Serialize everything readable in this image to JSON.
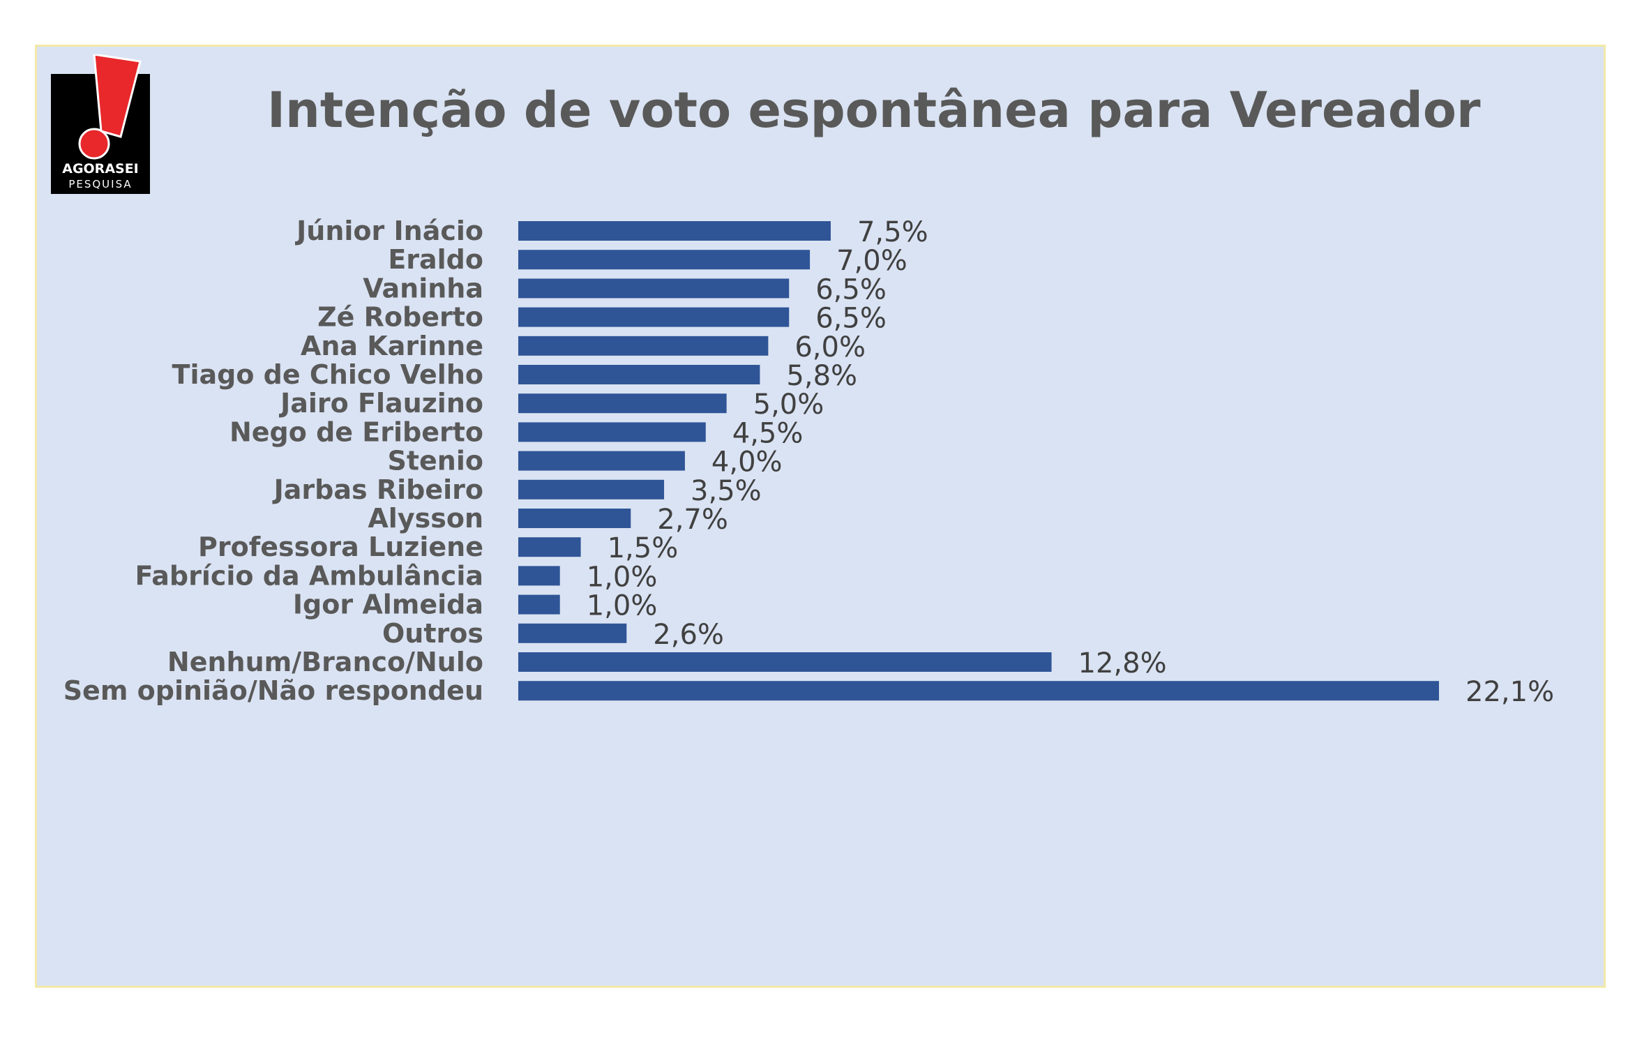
{
  "logo": {
    "text_top": "AGORASEI",
    "text_bottom": "PESQUISA",
    "colors": {
      "background": "#000000",
      "mark": "#e8282b",
      "text": "#ffffff"
    }
  },
  "colors": {
    "panel_background": "#dae3f3",
    "panel_border": "#f2e9a8",
    "bar": "#2f5597",
    "title": "#595959",
    "category_text": "#595959",
    "value_text": "#404040"
  },
  "chart_data": {
    "type": "bar",
    "orientation": "horizontal",
    "title": "Intenção de voto espontânea para Vereador",
    "xlabel": "",
    "ylabel": "",
    "xlim": [
      0,
      22.1
    ],
    "grid": false,
    "legend": "none",
    "categories": [
      "Júnior Inácio",
      "Eraldo",
      "Vaninha",
      "Zé Roberto",
      "Ana Karinne",
      "Tiago de Chico Velho",
      "Jairo Flauzino",
      "Nego de Eriberto",
      "Stenio",
      "Jarbas Ribeiro",
      "Alysson",
      "Professora Luziene",
      "Fabrício da Ambulância",
      "Igor Almeida",
      "Outros",
      "Nenhum/Branco/Nulo",
      "Sem opinião/Não respondeu"
    ],
    "values": [
      7.5,
      7.0,
      6.5,
      6.5,
      6.0,
      5.8,
      5.0,
      4.5,
      4.0,
      3.5,
      2.7,
      1.5,
      1.0,
      1.0,
      2.6,
      12.8,
      22.1
    ],
    "value_labels": [
      "7,5%",
      "7,0%",
      "6,5%",
      "6,5%",
      "6,0%",
      "5,8%",
      "5,0%",
      "4,5%",
      "4,0%",
      "3,5%",
      "2,7%",
      "1,5%",
      "1,0%",
      "1,0%",
      "2,6%",
      "12,8%",
      "22,1%"
    ]
  }
}
